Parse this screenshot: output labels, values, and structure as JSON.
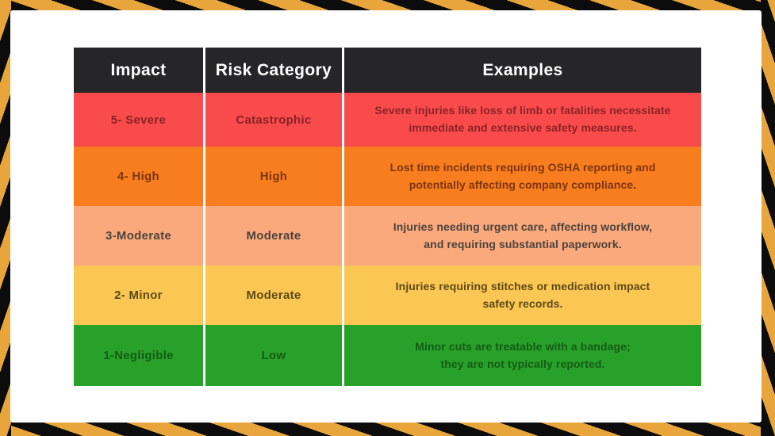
{
  "frame": {
    "stripe_yellow": "#e8a53c",
    "stripe_black": "#0c0c0c",
    "panel_color": "#ffffff",
    "header_bg": "#262628",
    "header_text": "#ffffff"
  },
  "chart_data": {
    "type": "table",
    "title": "",
    "columns": [
      "Impact",
      "Risk Category",
      "Examples"
    ],
    "rows": [
      {
        "impact": "5- Severe",
        "category": "Catastrophic",
        "example": "Severe injuries like loss of limb or fatalities necessitate\nimmediate and extensive safety measures.",
        "bg": "#f94a4c",
        "text": "#8b2428"
      },
      {
        "impact": "4- High",
        "category": "High",
        "example": "Lost time incidents requiring OSHA reporting and\npotentially affecting company compliance.",
        "bg": "#f87d1f",
        "text": "#7d350e"
      },
      {
        "impact": "3-Moderate",
        "category": "Moderate",
        "example": "Injuries needing urgent care, affecting workflow,\nand requiring substantial paperwork.",
        "bg": "#f9a97c",
        "text": "#4c433c"
      },
      {
        "impact": "2- Minor",
        "category": "Moderate",
        "example": "Injuries requiring stitches or medication impact\nsafety records.",
        "bg": "#fbc754",
        "text": "#5e4916"
      },
      {
        "impact": "1-Negligible",
        "category": "Low",
        "example": "Minor cuts are treatable with a bandage;\nthey are not typically reported.",
        "bg": "#28a12a",
        "text": "#155c15"
      }
    ]
  }
}
